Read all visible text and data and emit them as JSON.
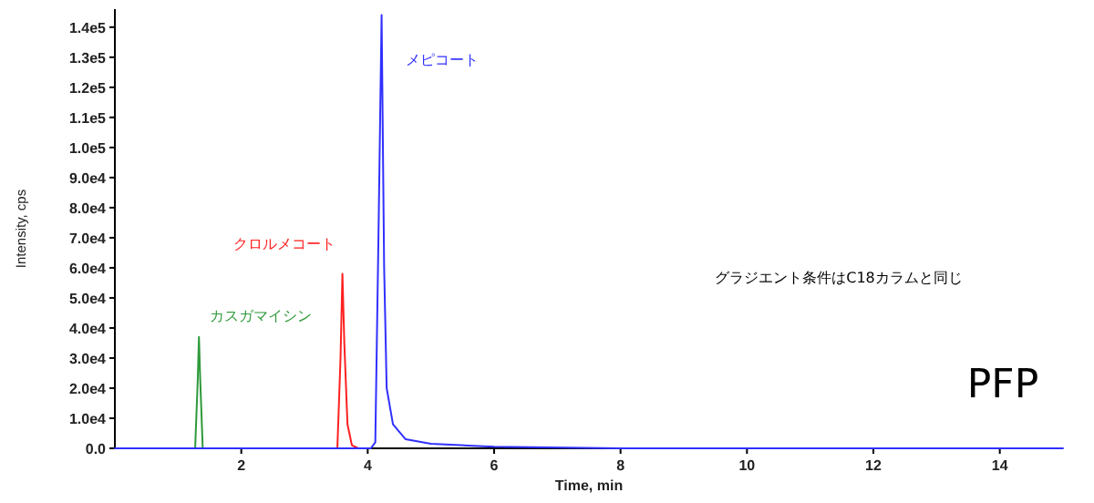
{
  "chart_data": {
    "type": "line",
    "xlabel": "Time, min",
    "ylabel": "Intensity, cps",
    "xlim": [
      0,
      15
    ],
    "xticks": [
      2,
      4,
      6,
      8,
      10,
      12,
      14
    ],
    "ylim": [
      0,
      146000
    ],
    "yticks": [
      {
        "value": 0,
        "label": "0.0"
      },
      {
        "value": 10000,
        "label": "1.0e4"
      },
      {
        "value": 20000,
        "label": "2.0e4"
      },
      {
        "value": 30000,
        "label": "3.0e4"
      },
      {
        "value": 40000,
        "label": "4.0e4"
      },
      {
        "value": 50000,
        "label": "5.0e4"
      },
      {
        "value": 60000,
        "label": "6.0e4"
      },
      {
        "value": 70000,
        "label": "7.0e4"
      },
      {
        "value": 80000,
        "label": "8.0e4"
      },
      {
        "value": 90000,
        "label": "9.0e4"
      },
      {
        "value": 100000,
        "label": "1.0e5"
      },
      {
        "value": 110000,
        "label": "1.1e5"
      },
      {
        "value": 120000,
        "label": "1.2e5"
      },
      {
        "value": 130000,
        "label": "1.3e5"
      },
      {
        "value": 140000,
        "label": "1.4e5"
      }
    ],
    "series": [
      {
        "name": "カスガマイシン",
        "color": "#2e9a3a",
        "x": [
          1.2,
          1.27,
          1.31,
          1.33,
          1.35,
          1.39,
          1.45
        ],
        "values": [
          0,
          0,
          22000,
          37000,
          23000,
          0,
          0
        ]
      },
      {
        "name": "クロルメコート",
        "color": "#ff2020",
        "x": [
          3.45,
          3.52,
          3.57,
          3.6,
          3.63,
          3.68,
          3.75,
          3.85
        ],
        "values": [
          0,
          0,
          30000,
          58000,
          35000,
          8000,
          1000,
          0
        ]
      },
      {
        "name": "メピコート",
        "color": "#3030ff",
        "x": [
          0,
          4.05,
          4.12,
          4.17,
          4.22,
          4.26,
          4.3,
          4.4,
          4.6,
          5,
          6,
          8,
          10,
          12,
          14,
          15
        ],
        "values": [
          0,
          0,
          2000,
          70000,
          144000,
          60000,
          20000,
          8000,
          3000,
          1500,
          500,
          0,
          0,
          0,
          0,
          0
        ]
      }
    ],
    "legend": false,
    "annotations": [
      "グラジエント条件はC18カラムと同じ",
      "PFP"
    ]
  }
}
